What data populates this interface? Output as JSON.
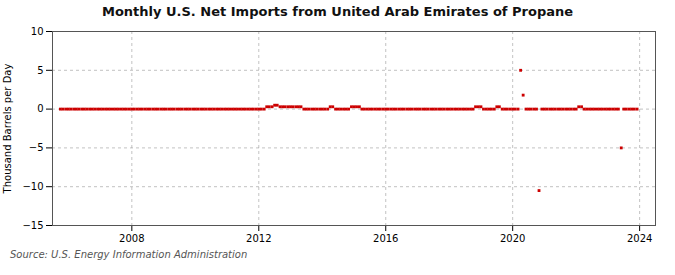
{
  "chart_data": {
    "type": "scatter",
    "title": "Monthly U.S. Net Imports from United Arab Emirates of Propane",
    "ylabel": "Thousand Barrels per Day",
    "source": "Source: U.S. Energy Information Administration",
    "color": "#cc0000",
    "marker": "square",
    "grid": true,
    "xlim": [
      2005.5,
      2024.5
    ],
    "xticks": [
      2008,
      2012,
      2016,
      2020,
      2024
    ],
    "ylim": [
      -15,
      10
    ],
    "yticks": [
      -15,
      -10,
      -5,
      0,
      5,
      10
    ],
    "x": [
      2005.75,
      2005.83,
      2005.92,
      2006.0,
      2006.08,
      2006.17,
      2006.25,
      2006.33,
      2006.42,
      2006.5,
      2006.58,
      2006.67,
      2006.75,
      2006.83,
      2006.92,
      2007.0,
      2007.08,
      2007.17,
      2007.25,
      2007.33,
      2007.42,
      2007.5,
      2007.58,
      2007.67,
      2007.75,
      2007.83,
      2007.92,
      2008.0,
      2008.08,
      2008.17,
      2008.25,
      2008.33,
      2008.42,
      2008.5,
      2008.58,
      2008.67,
      2008.75,
      2008.83,
      2008.92,
      2009.0,
      2009.08,
      2009.17,
      2009.25,
      2009.33,
      2009.42,
      2009.5,
      2009.58,
      2009.67,
      2009.75,
      2009.83,
      2009.92,
      2010.0,
      2010.08,
      2010.17,
      2010.25,
      2010.33,
      2010.42,
      2010.5,
      2010.58,
      2010.67,
      2010.75,
      2010.83,
      2010.92,
      2011.0,
      2011.08,
      2011.17,
      2011.25,
      2011.33,
      2011.42,
      2011.5,
      2011.58,
      2011.67,
      2011.75,
      2011.83,
      2011.92,
      2012.0,
      2012.08,
      2012.17,
      2012.25,
      2012.33,
      2012.42,
      2012.5,
      2012.58,
      2012.67,
      2012.75,
      2012.83,
      2012.92,
      2013.0,
      2013.08,
      2013.17,
      2013.25,
      2013.33,
      2013.42,
      2013.5,
      2013.58,
      2013.67,
      2013.75,
      2013.83,
      2013.92,
      2014.0,
      2014.08,
      2014.17,
      2014.25,
      2014.33,
      2014.42,
      2014.5,
      2014.58,
      2014.67,
      2014.75,
      2014.83,
      2014.92,
      2015.0,
      2015.08,
      2015.17,
      2015.25,
      2015.33,
      2015.42,
      2015.5,
      2015.58,
      2015.67,
      2015.75,
      2015.83,
      2015.92,
      2016.0,
      2016.08,
      2016.17,
      2016.25,
      2016.33,
      2016.42,
      2016.5,
      2016.58,
      2016.67,
      2016.75,
      2016.83,
      2016.92,
      2017.0,
      2017.08,
      2017.17,
      2017.25,
      2017.33,
      2017.42,
      2017.5,
      2017.58,
      2017.67,
      2017.75,
      2017.83,
      2017.92,
      2018.0,
      2018.08,
      2018.17,
      2018.25,
      2018.33,
      2018.42,
      2018.5,
      2018.58,
      2018.67,
      2018.75,
      2018.83,
      2018.92,
      2019.0,
      2019.08,
      2019.17,
      2019.25,
      2019.33,
      2019.42,
      2019.5,
      2019.58,
      2019.67,
      2019.75,
      2019.83,
      2019.92,
      2020.0,
      2020.08,
      2020.17,
      2020.25,
      2020.33,
      2020.42,
      2020.5,
      2020.58,
      2020.67,
      2020.75,
      2020.83,
      2020.92,
      2021.0,
      2021.08,
      2021.17,
      2021.25,
      2021.33,
      2021.42,
      2021.5,
      2021.58,
      2021.67,
      2021.75,
      2021.83,
      2021.92,
      2022.0,
      2022.08,
      2022.17,
      2022.25,
      2022.33,
      2022.42,
      2022.5,
      2022.58,
      2022.67,
      2022.75,
      2022.83,
      2022.92,
      2023.0,
      2023.08,
      2023.17,
      2023.25,
      2023.33,
      2023.42,
      2023.5,
      2023.58,
      2023.67,
      2023.75,
      2023.83,
      2023.92
    ],
    "values": [
      0,
      0,
      0,
      0,
      0,
      0,
      0,
      0,
      0,
      0,
      0,
      0,
      0,
      0,
      0,
      0,
      0,
      0,
      0,
      0,
      0,
      0,
      0,
      0,
      0,
      0,
      0,
      0,
      0,
      0,
      0,
      0,
      0,
      0,
      0,
      0,
      0,
      0,
      0,
      0,
      0,
      0,
      0,
      0,
      0,
      0,
      0,
      0,
      0,
      0,
      0,
      0,
      0,
      0,
      0,
      0,
      0,
      0,
      0,
      0,
      0,
      0,
      0,
      0,
      0,
      0,
      0,
      0,
      0,
      0,
      0,
      0,
      0,
      0,
      0,
      0,
      0,
      0,
      0.3,
      0.3,
      0.3,
      0.5,
      0.5,
      0.3,
      0.3,
      0.3,
      0.3,
      0.3,
      0.3,
      0.3,
      0.3,
      0.3,
      0,
      0,
      0,
      0,
      0,
      0,
      0,
      0,
      0,
      0,
      0.3,
      0.3,
      0,
      0,
      0,
      0,
      0,
      0,
      0.3,
      0.3,
      0.3,
      0.3,
      0,
      0,
      0,
      0,
      0,
      0,
      0,
      0,
      0,
      0,
      0,
      0,
      0,
      0,
      0,
      0,
      0,
      0,
      0,
      0,
      0,
      0,
      0,
      0,
      0,
      0,
      0,
      0,
      0,
      0,
      0,
      0,
      0,
      0,
      0,
      0,
      0,
      0,
      0,
      0,
      0,
      0,
      0,
      0.3,
      0.3,
      0.3,
      0,
      0,
      0,
      0,
      0,
      0.3,
      0.3,
      0,
      0,
      0,
      0,
      0,
      0,
      0,
      5.0,
      1.8,
      0,
      0,
      0,
      0,
      0,
      -10.5,
      0,
      0,
      0,
      0,
      0,
      0,
      0,
      0,
      0,
      0,
      0,
      0,
      0,
      0,
      0.3,
      0.3,
      0,
      0,
      0,
      0,
      0,
      0,
      0,
      0,
      0,
      0,
      0,
      0,
      0,
      0,
      -5.0,
      0,
      0,
      0,
      0,
      0,
      0
    ]
  }
}
